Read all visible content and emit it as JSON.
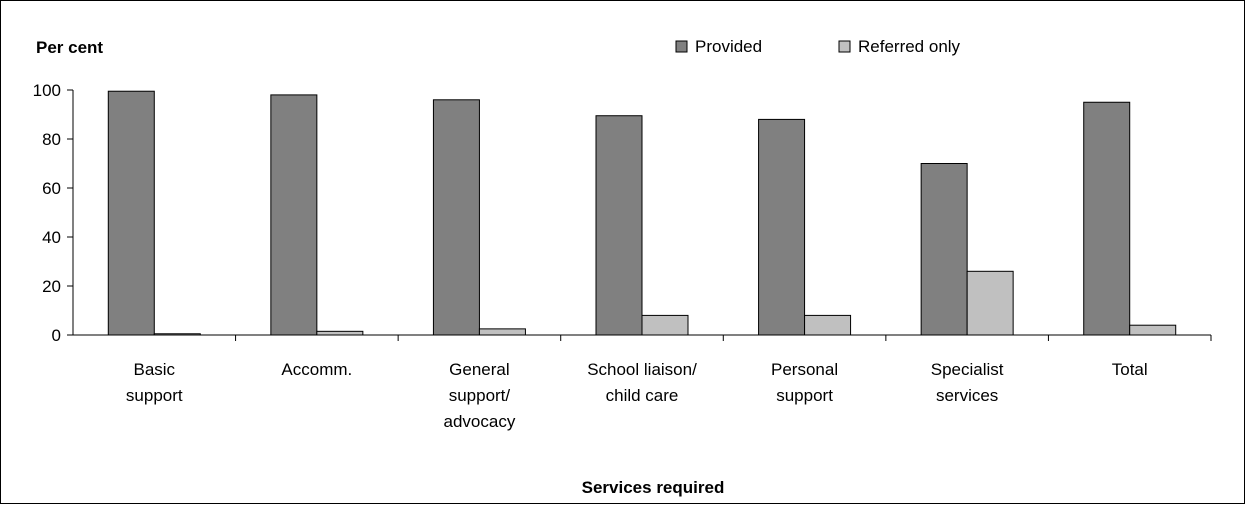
{
  "chart_data": {
    "type": "bar",
    "title": "",
    "ylabel": "Per cent",
    "xlabel": "Services required",
    "ylim": [
      0,
      100
    ],
    "yticks": [
      0,
      20,
      40,
      60,
      80,
      100
    ],
    "grid": false,
    "legend_position": "top-right",
    "categories": [
      [
        "Basic",
        "support"
      ],
      [
        "Accomm."
      ],
      [
        "General",
        "support/",
        "advocacy"
      ],
      [
        "School liaison/",
        "child care"
      ],
      [
        "Personal",
        "support"
      ],
      [
        "Specialist",
        "services"
      ],
      [
        "Total"
      ]
    ],
    "series": [
      {
        "name": "Provided",
        "color": "#808080",
        "values": [
          99.5,
          98,
          96,
          89.5,
          88,
          70,
          95
        ]
      },
      {
        "name": "Referred only",
        "color": "#c0c0c0",
        "values": [
          0.5,
          1.5,
          2.5,
          8,
          8,
          26,
          4
        ]
      }
    ]
  }
}
